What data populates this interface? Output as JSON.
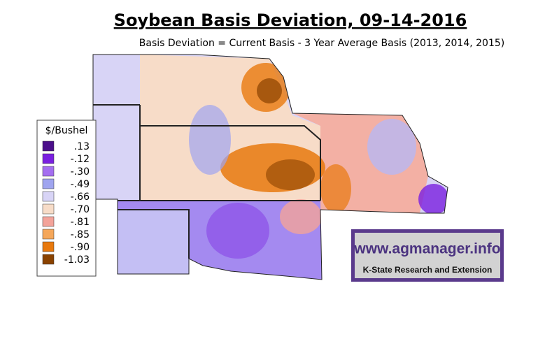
{
  "header": {
    "title": "Soybean Basis Deviation, 09-14-2016",
    "subtitle": "Basis Deviation = Current Basis - 3 Year Average Basis (2013, 2014, 2015)"
  },
  "legend": {
    "title": "$/Bushel",
    "items": [
      {
        "label": ".13",
        "color": "#4b0f8a"
      },
      {
        "label": "-.12",
        "color": "#7a1fe0"
      },
      {
        "label": "-.30",
        "color": "#a46ef0"
      },
      {
        "label": "-.49",
        "color": "#9fa4ef"
      },
      {
        "label": "-.66",
        "color": "#d8d4f6"
      },
      {
        "label": "-.70",
        "color": "#f7dcc8"
      },
      {
        "label": "-.81",
        "color": "#f3a39a"
      },
      {
        "label": "-.85",
        "color": "#f5a75a"
      },
      {
        "label": "-.90",
        "color": "#e8790e"
      },
      {
        "label": "-1.03",
        "color": "#8a4200"
      }
    ]
  },
  "logo": {
    "url": "www.agmanager.info",
    "tagline": "K-State Research and Extension"
  }
}
